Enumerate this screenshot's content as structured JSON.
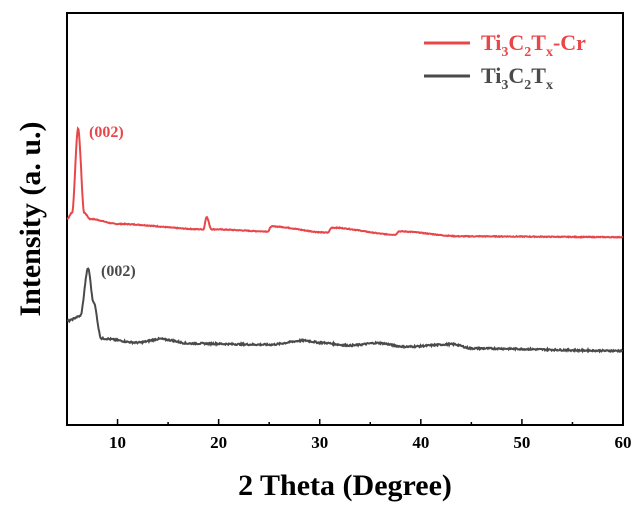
{
  "chart_data": {
    "type": "line",
    "xlabel": "2 Theta (Degree)",
    "ylabel": "Intensity (a. u.)",
    "xlim": [
      5,
      60
    ],
    "x_ticks": [
      "10",
      "20",
      "30",
      "40",
      "50",
      "60"
    ],
    "y_ticks_shown": false,
    "grid": false,
    "legend_position": "top-right",
    "series": [
      {
        "name": "Ti3C2Tx-Cr",
        "name_parts": {
          "main": "Ti",
          "sub1": "3",
          "mid": "C",
          "sub2": "2",
          "mid2": "T",
          "sub3": "x",
          "suffix": "-Cr"
        },
        "color": "#e8474a",
        "baseline": 0.62,
        "noise": 0.0015,
        "points": [
          [
            5,
            0.5
          ],
          [
            5.5,
            0.515
          ],
          [
            6.1,
            0.72
          ],
          [
            6.7,
            0.515
          ],
          [
            7.3,
            0.5
          ],
          [
            10,
            0.488
          ],
          [
            18.5,
            0.475
          ],
          [
            18.8,
            0.505
          ],
          [
            19.3,
            0.475
          ],
          [
            24.9,
            0.47
          ],
          [
            25.2,
            0.482
          ],
          [
            30.8,
            0.467
          ],
          [
            31.2,
            0.479
          ],
          [
            37.5,
            0.462
          ],
          [
            37.8,
            0.47
          ],
          [
            44,
            0.458
          ],
          [
            60,
            0.456
          ]
        ],
        "annotation": "(002)"
      },
      {
        "name": "Ti3C2Tx",
        "name_parts": {
          "main": "Ti",
          "sub1": "3",
          "mid": "C",
          "sub2": "2",
          "mid2": "T",
          "sub3": "x",
          "suffix": ""
        },
        "color": "#4a4a4a",
        "points": [
          [
            5,
            0.252
          ],
          [
            6.3,
            0.264
          ],
          [
            7.1,
            0.38
          ],
          [
            7.6,
            0.3
          ],
          [
            8.4,
            0.21
          ],
          [
            12,
            0.2
          ],
          [
            14.3,
            0.209
          ],
          [
            14.8,
            0.207
          ],
          [
            17,
            0.198
          ],
          [
            25,
            0.195
          ],
          [
            28.5,
            0.205
          ],
          [
            30,
            0.2
          ],
          [
            33,
            0.193
          ],
          [
            35.7,
            0.199
          ],
          [
            38.5,
            0.19
          ],
          [
            43.2,
            0.196
          ],
          [
            45,
            0.186
          ],
          [
            60,
            0.18
          ]
        ],
        "annotation": "(002)"
      }
    ]
  }
}
